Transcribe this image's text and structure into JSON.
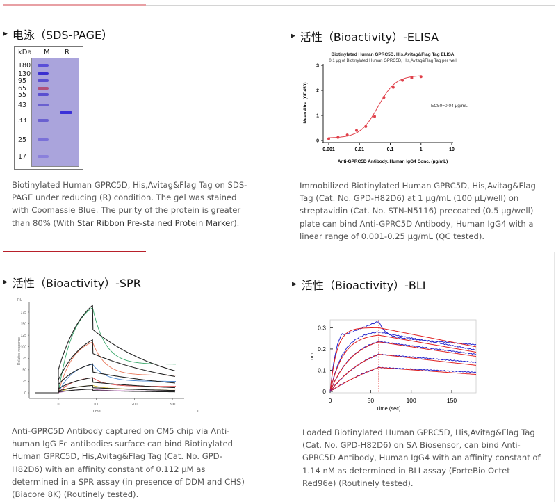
{
  "colors": {
    "accent": "#c0392b",
    "divider": "#d4d4d4",
    "text": "#555555"
  },
  "sds": {
    "heading": "电泳（SDS-PAGE）",
    "lanes": {
      "unit": "kDa",
      "marker": "M",
      "sample": "R"
    },
    "markers": [
      "180",
      "130",
      "95",
      "65",
      "55",
      "43",
      "33",
      "25",
      "17"
    ],
    "sample_band_kDa": "38",
    "desc_before": "Biotinylated Human GPRC5D, His,Avitag&Flag Tag on SDS-PAGE under reducing (R) condition. The gel was stained with Coomassie Blue. The purity of the protein is greater than 80% (With ",
    "link": "Star Ribbon Pre-stained Protein Marker",
    "desc_after": ")."
  },
  "elisa": {
    "heading": "活性（Bioactivity）-ELISA",
    "desc": "Immobilized Biotinylated Human GPRC5D, His,Avitag&Flag Tag (Cat. No. GPD-H82D6) at 1 μg/mL (100 μL/well) on streptavidin (Cat. No. STN-N5116) precoated (0.5 μg/well) plate can bind Anti-GPRC5D Antibody, Human IgG4 with a linear range of 0.001-0.25 μg/mL (QC tested)."
  },
  "spr": {
    "heading": "活性（Bioactivity）-SPR",
    "desc": "Anti-GPRC5D Antibody captured on CM5 chip via Anti-human IgG Fc antibodies surface can bind Biotinylated Human GPRC5D, His,Avitag&Flag Tag (Cat. No. GPD-H82D6) with an affinity constant of 0.112 μM as determined in a SPR assay (in presence of DDM and CHS) (Biacore 8K) (Routinely tested)."
  },
  "bli": {
    "heading": "活性（Bioactivity）-BLI",
    "desc": "Loaded Biotinylated Human GPRC5D, His,Avitag&Flag Tag (Cat. No. GPD-H82D6) on SA Biosensor, can bind Anti-GPRC5D Antibody, Human IgG4 with an affinity constant of 1.14 nM as determined in BLI assay (ForteBio Octet Red96e) (Routinely tested)."
  },
  "chart_data": [
    {
      "type": "scatter",
      "title": "Biotinylated Human GPRC5D, His,Avitag&Flag Tag ELISA",
      "subtitle": "0.1 μg of Biotinylated Human GPRC5D, His,Avitag&Flag Tag per well",
      "xlabel": "Anti-GPRC5D Antibody, Human IgG4 Conc. (μg/mL)",
      "ylabel": "Mean Abs. (OD450)",
      "xscale": "log",
      "xlim": [
        0.001,
        10
      ],
      "ylim": [
        0,
        3
      ],
      "xticks": [
        "0.001",
        "0.01",
        "0.1",
        "1",
        "10"
      ],
      "yticks": [
        "0",
        "1",
        "2",
        "3"
      ],
      "annotation": "EC50=0.04 μg/mL",
      "color": "#e0404a",
      "x": [
        0.001,
        0.002,
        0.004,
        0.008,
        0.016,
        0.031,
        0.0625,
        0.125,
        0.25,
        0.5,
        1
      ],
      "y": [
        0.07,
        0.12,
        0.22,
        0.4,
        0.56,
        0.96,
        1.72,
        2.12,
        2.4,
        2.5,
        2.55
      ],
      "fit": {
        "bottom": 0.1,
        "top": 2.6,
        "ec50": 0.04,
        "hill": 1.5
      }
    },
    {
      "type": "line",
      "ylabel": "Relative response",
      "yunit": "RU",
      "xlabel": "Time",
      "xunit": "s",
      "xlim": [
        -60,
        330
      ],
      "ylim": [
        -5,
        190
      ],
      "xticks": [
        "0",
        "100",
        "200",
        "300"
      ],
      "yticks": [
        "0",
        "25",
        "50",
        "75",
        "100",
        "125",
        "150",
        "175"
      ],
      "injection_end_s": 90,
      "curves": [
        {
          "color": "#3aa86b",
          "peak": 185,
          "end": 62
        },
        {
          "color": "#e8785a",
          "peak": 110,
          "end": 38
        },
        {
          "color": "#4a86d0",
          "peak": 62,
          "end": 25
        },
        {
          "color": "#e05050",
          "peak": 33,
          "end": 14
        },
        {
          "color": "#d9c23a",
          "peak": 16,
          "end": 8
        },
        {
          "color": "#c070c0",
          "peak": 8,
          "end": 4
        }
      ],
      "fits": [
        {
          "color": "#222222",
          "start": 50,
          "peak": 190,
          "after": 137,
          "end": 47
        },
        {
          "color": "#222222",
          "start": 28,
          "peak": 115,
          "after": 85,
          "end": 35
        },
        {
          "color": "#222222",
          "start": 18,
          "peak": 63,
          "after": 45,
          "end": 21
        },
        {
          "color": "#222222",
          "start": 9,
          "peak": 33,
          "after": 23,
          "end": 11
        },
        {
          "color": "#222222",
          "start": 4,
          "peak": 16,
          "after": 11,
          "end": 5
        },
        {
          "color": "#222222",
          "start": 2,
          "peak": 8,
          "after": 5,
          "end": 2
        }
      ]
    },
    {
      "type": "line",
      "xlabel": "Time (sec)",
      "ylabel": "nm",
      "xlim": [
        0,
        180
      ],
      "ylim": [
        0,
        0.33
      ],
      "xticks": [
        "0",
        "50",
        "100",
        "150"
      ],
      "yticks": [
        "0",
        "0.1",
        "0.2",
        "0.3"
      ],
      "association_end_s": 60,
      "data_color": "#2222cc",
      "fit_color": "#e02020",
      "curves": [
        {
          "peak": 0.33,
          "fit_peak": 0.3,
          "end": 0.22,
          "fit_end": 0.21,
          "k": 0.12
        },
        {
          "peak": 0.28,
          "fit_peak": 0.265,
          "end": 0.195,
          "fit_end": 0.185,
          "k": 0.06
        },
        {
          "peak": 0.235,
          "fit_peak": 0.233,
          "end": 0.175,
          "fit_end": 0.165,
          "k": 0.035
        },
        {
          "peak": 0.175,
          "fit_peak": 0.175,
          "end": 0.137,
          "fit_end": 0.123,
          "k": 0.02
        },
        {
          "peak": 0.113,
          "fit_peak": 0.113,
          "end": 0.09,
          "fit_end": 0.08,
          "k": 0.01
        }
      ]
    }
  ]
}
